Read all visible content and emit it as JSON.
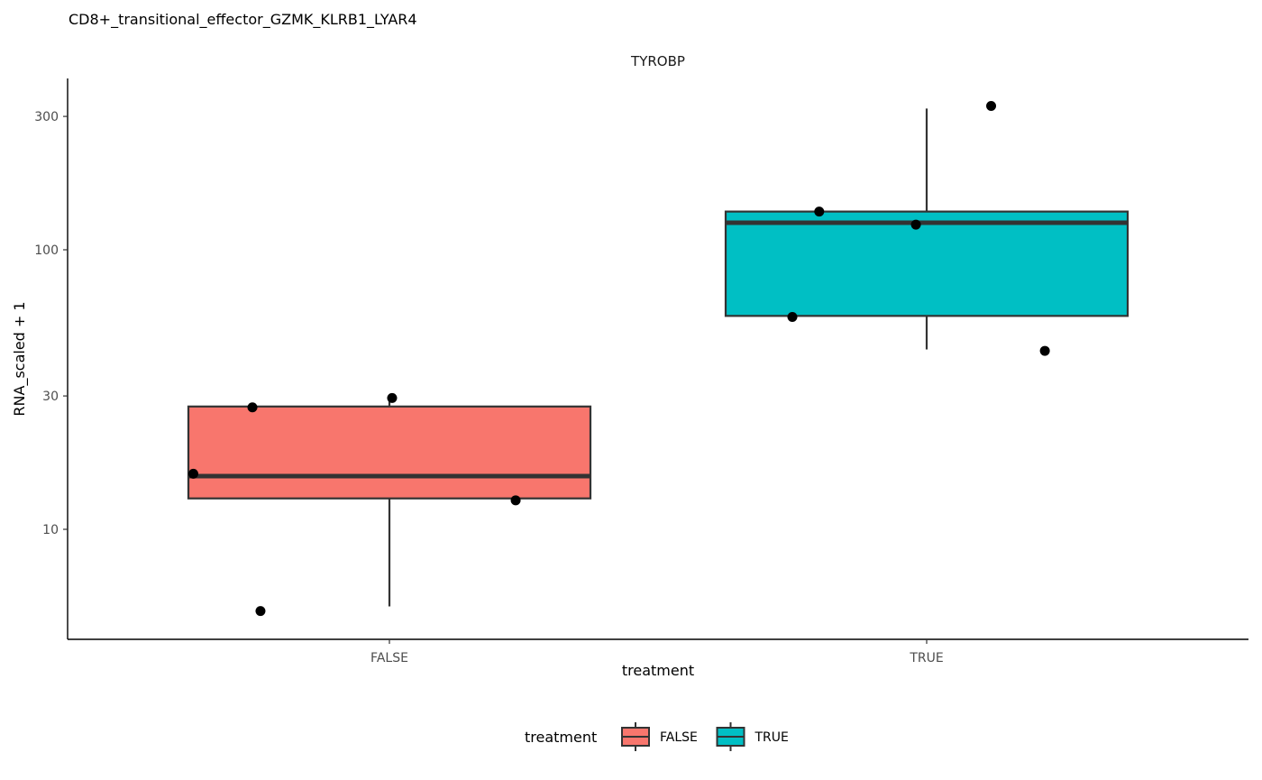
{
  "chart_data": {
    "type": "box",
    "title": "CD8+_transitional_effector_GZMK_KLRB1_LYAR4",
    "panel_label": "TYROBP",
    "xlabel": "treatment",
    "ylabel": "RNA_scaled + 1",
    "y_scale": "log10",
    "ylim": [
      5.1,
      400
    ],
    "y_ticks": [
      10,
      30,
      100,
      300
    ],
    "categories": [
      "FALSE",
      "TRUE"
    ],
    "legend": {
      "title": "treatment",
      "position": "bottom",
      "entries": [
        "FALSE",
        "TRUE"
      ]
    },
    "colors": {
      "FALSE": "#F8766D",
      "TRUE": "#00BFC4"
    },
    "boxes": [
      {
        "category": "FALSE",
        "whisker_low": 5.3,
        "q1": 12.9,
        "median": 15.5,
        "q3": 27.5,
        "whisker_high": 29.5
      },
      {
        "category": "TRUE",
        "whisker_low": 44,
        "q1": 58,
        "median": 125,
        "q3": 137,
        "whisker_high": 320
      }
    ],
    "points": [
      {
        "category": "FALSE",
        "jitter": -0.365,
        "y": 15.8
      },
      {
        "category": "FALSE",
        "jitter": -0.255,
        "y": 27.3
      },
      {
        "category": "FALSE",
        "jitter": -0.24,
        "y": 5.1
      },
      {
        "category": "FALSE",
        "jitter": 0.005,
        "y": 29.5
      },
      {
        "category": "FALSE",
        "jitter": 0.235,
        "y": 12.7
      },
      {
        "category": "TRUE",
        "jitter": -0.25,
        "y": 57.5
      },
      {
        "category": "TRUE",
        "jitter": -0.2,
        "y": 137
      },
      {
        "category": "TRUE",
        "jitter": -0.02,
        "y": 123
      },
      {
        "category": "TRUE",
        "jitter": 0.12,
        "y": 327
      },
      {
        "category": "TRUE",
        "jitter": 0.22,
        "y": 43.5
      }
    ]
  }
}
